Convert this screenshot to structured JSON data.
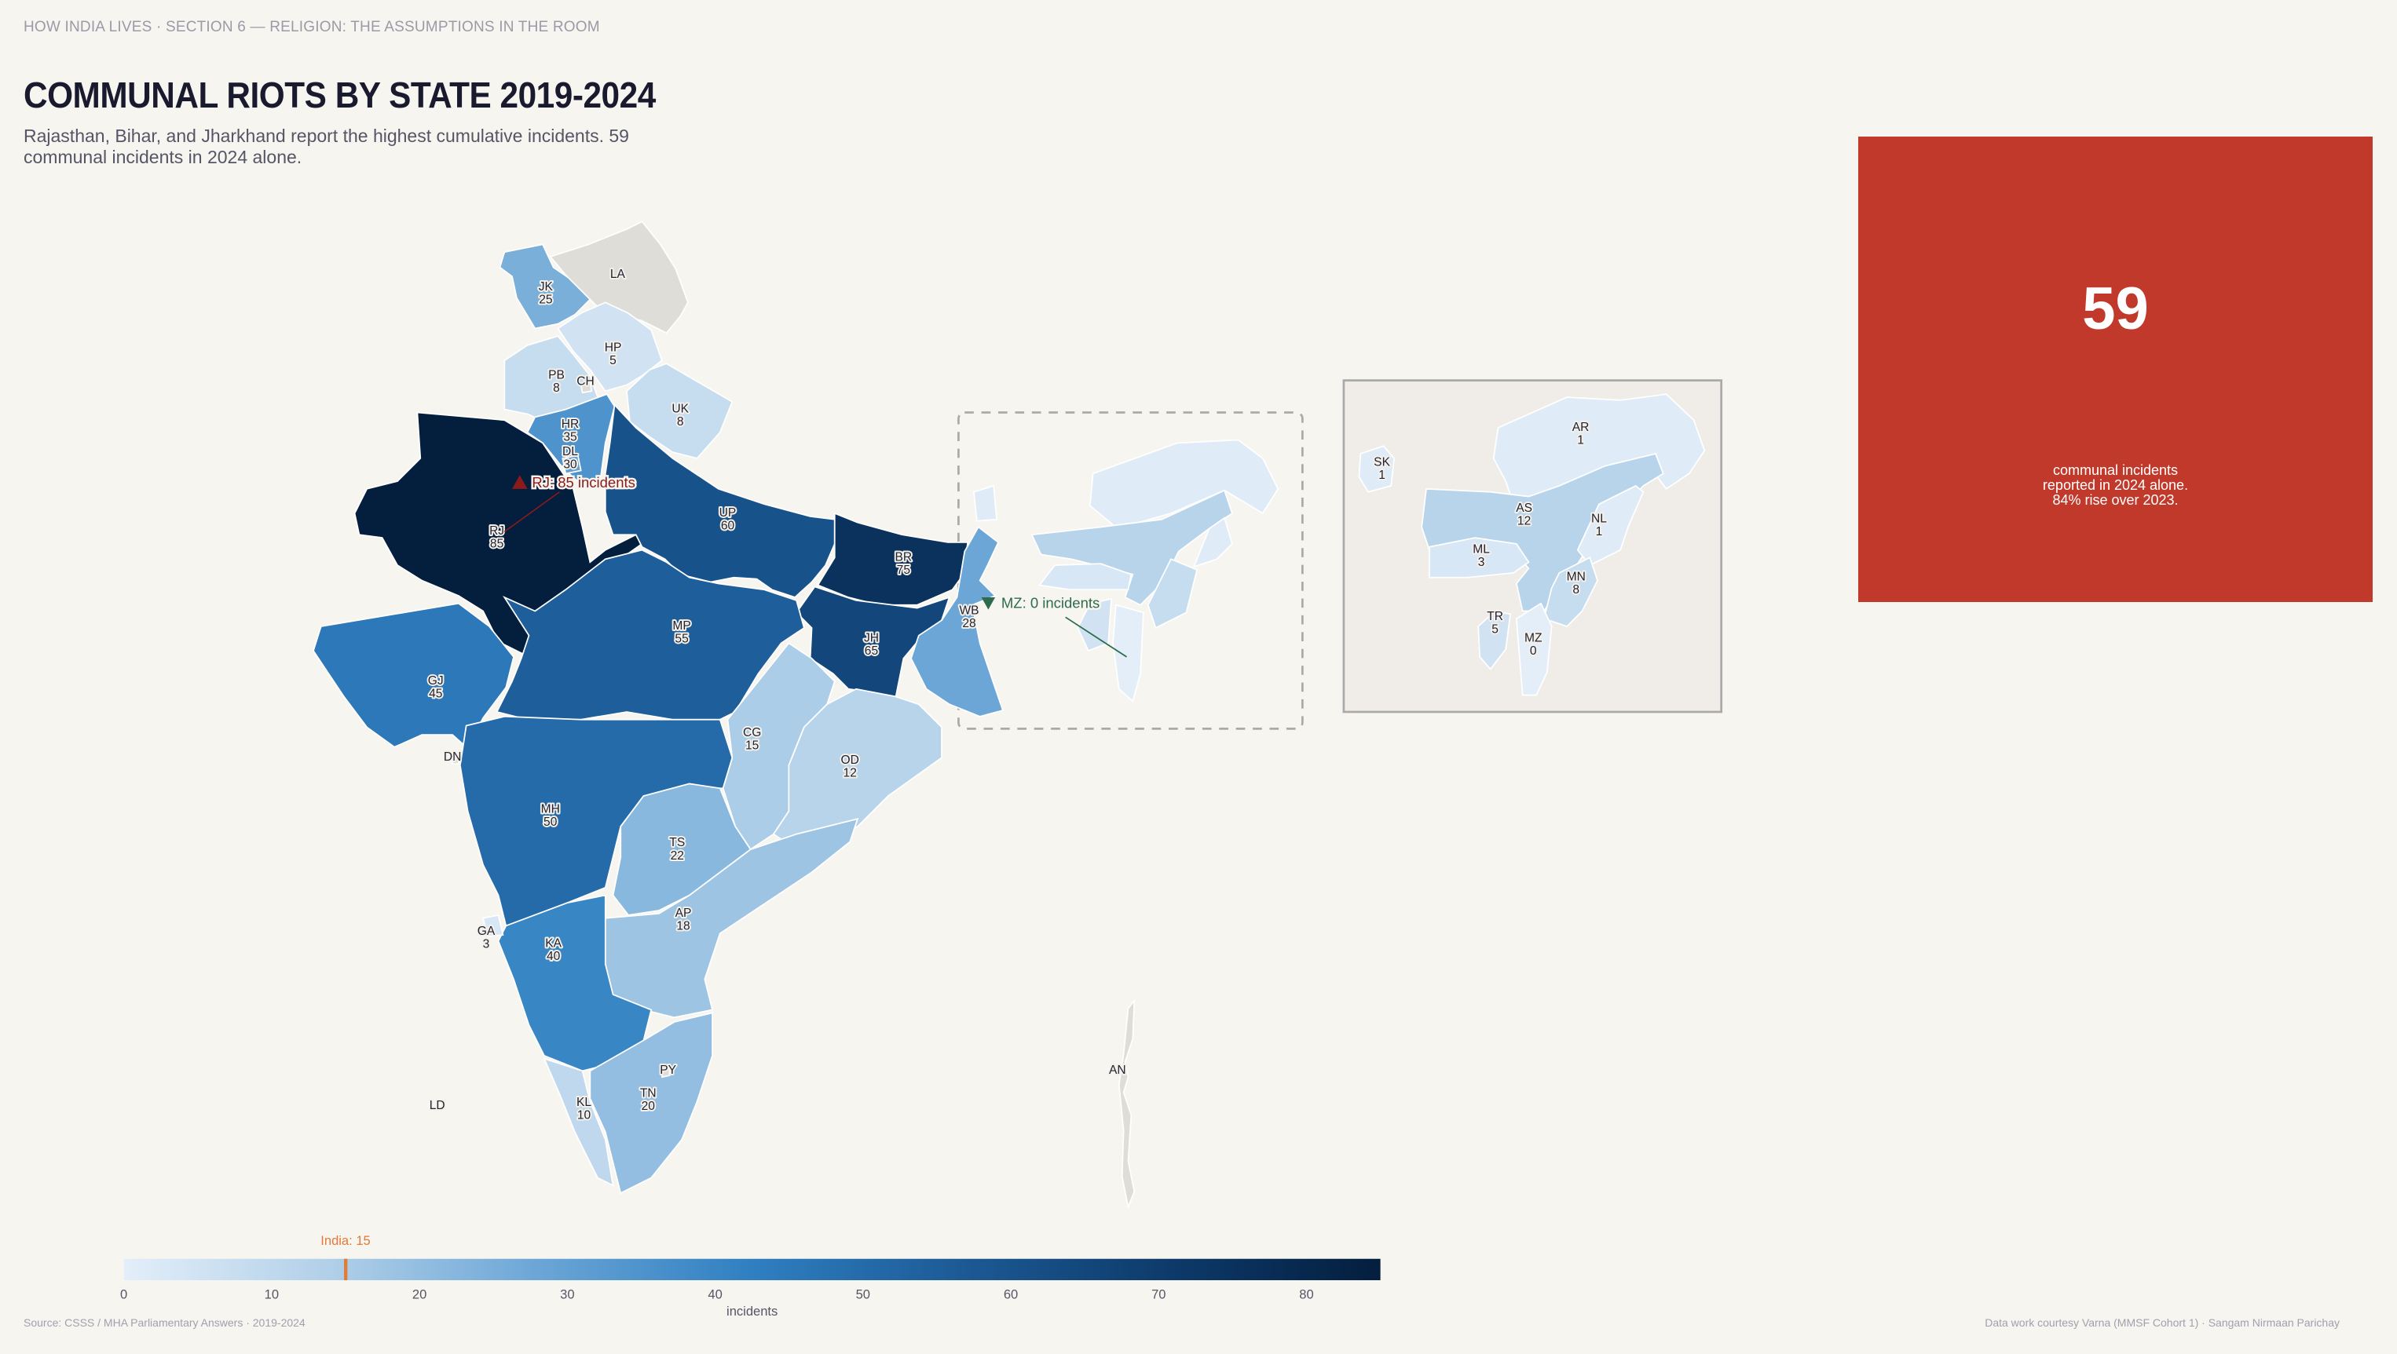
{
  "header": {
    "breadcrumb": "HOW INDIA LIVES  ·  SECTION 6 — RELIGION: THE ASSUMPTIONS IN THE ROOM",
    "title": "COMMUNAL RIOTS BY STATE 2019-2024",
    "subtitle": "Rajasthan, Bihar, and Jharkhand report the highest cumulative incidents. 59 communal incidents in 2024 alone."
  },
  "stat_card": {
    "value": "59",
    "description": "communal incidents reported in 2024 alone. 84% rise over 2023.",
    "color": "#c0392b"
  },
  "chart_data": {
    "type": "choropleth",
    "colorbar_label": "incidents",
    "range": [
      0,
      85
    ],
    "ticks": [
      "0",
      "10",
      "20",
      "30",
      "40",
      "50",
      "60",
      "70",
      "80"
    ],
    "colors": [
      "#e3eef9",
      "#b0cfe8",
      "#6aa5d6",
      "#2f7fc1",
      "#1c5a95",
      "#0d3a6a",
      "#041e3e"
    ],
    "no_data_color": "#dfddd8",
    "reference": {
      "label": "India: 15",
      "value": 15,
      "color": "#e07b39"
    },
    "annotations": [
      {
        "label": "RJ: 85 incidents",
        "marker": "triangle-up",
        "color": "#8b1a1a"
      },
      {
        "label": "MZ: 0 incidents",
        "marker": "triangle-down",
        "color": "#2e6b4a"
      }
    ],
    "states": [
      {
        "code": "JK",
        "value": 25
      },
      {
        "code": "LA",
        "value": null
      },
      {
        "code": "HP",
        "value": 5
      },
      {
        "code": "PB",
        "value": 8
      },
      {
        "code": "CH",
        "value": null
      },
      {
        "code": "UK",
        "value": 8
      },
      {
        "code": "HR",
        "value": 35
      },
      {
        "code": "DL",
        "value": 30
      },
      {
        "code": "RJ",
        "value": 85
      },
      {
        "code": "UP",
        "value": 60
      },
      {
        "code": "BR",
        "value": 75
      },
      {
        "code": "JH",
        "value": 65
      },
      {
        "code": "WB",
        "value": 28
      },
      {
        "code": "GJ",
        "value": 45
      },
      {
        "code": "MP",
        "value": 55
      },
      {
        "code": "CG",
        "value": 15
      },
      {
        "code": "OD",
        "value": 12
      },
      {
        "code": "MH",
        "value": 50
      },
      {
        "code": "TS",
        "value": 22
      },
      {
        "code": "AP",
        "value": 18
      },
      {
        "code": "KA",
        "value": 40
      },
      {
        "code": "GA",
        "value": 3
      },
      {
        "code": "KL",
        "value": 10
      },
      {
        "code": "TN",
        "value": 20
      },
      {
        "code": "PY",
        "value": null
      },
      {
        "code": "DN",
        "value": null
      },
      {
        "code": "LD",
        "value": null
      },
      {
        "code": "AN",
        "value": null
      },
      {
        "code": "SK",
        "value": 1
      },
      {
        "code": "AR",
        "value": 1
      },
      {
        "code": "AS",
        "value": 12
      },
      {
        "code": "NL",
        "value": 1
      },
      {
        "code": "ML",
        "value": 3
      },
      {
        "code": "MN",
        "value": 8
      },
      {
        "code": "TR",
        "value": 5
      },
      {
        "code": "MZ",
        "value": 0
      }
    ]
  },
  "footer": {
    "source": "Source: CSSS / MHA Parliamentary Answers  ·  2019-2024",
    "credit": "Data work courtesy Varna (MMSF Cohort 1)  ·  Sangam Nirmaan Parichay"
  }
}
